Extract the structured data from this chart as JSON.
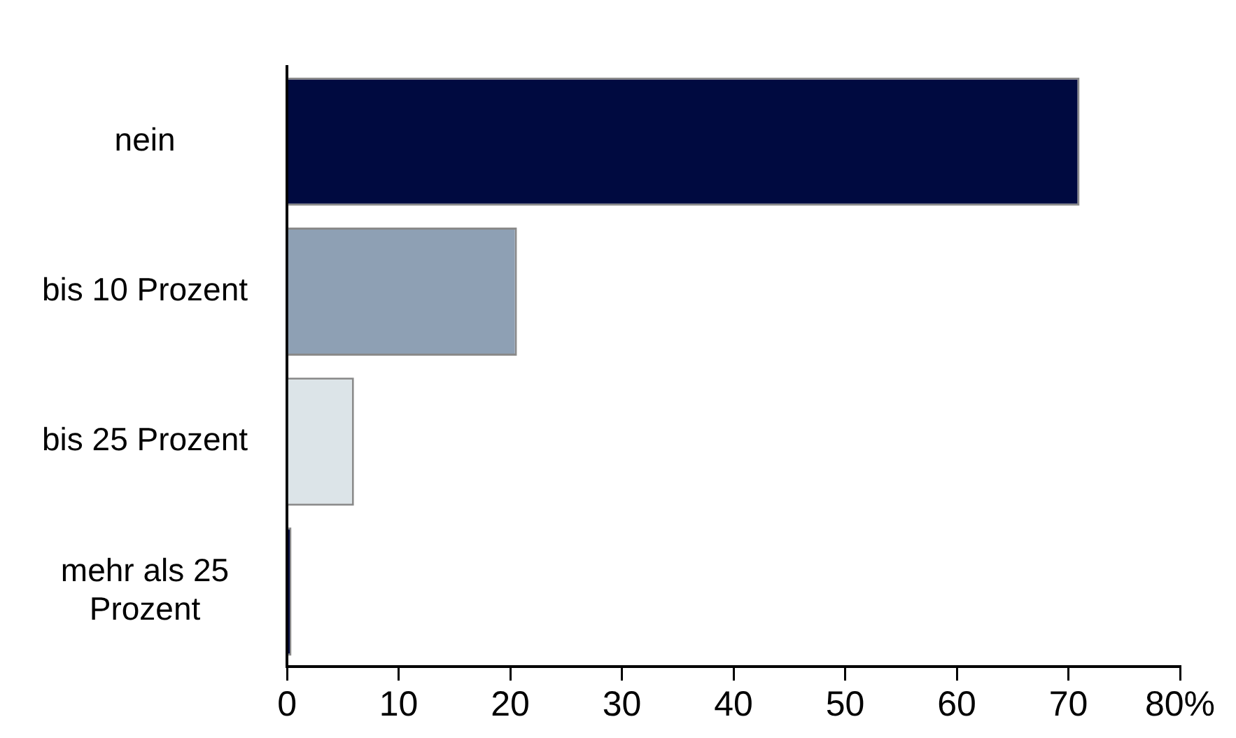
{
  "chart_data": {
    "type": "bar",
    "orientation": "horizontal",
    "categories": [
      "nein",
      "bis 10 Prozent",
      "bis 25 Prozent",
      "mehr als 25 Prozent"
    ],
    "values": [
      71,
      20.6,
      6,
      0.4
    ],
    "colors": [
      "#000a40",
      "#8ea0b4",
      "#dce4e8",
      "#000a40"
    ],
    "xlim": [
      0,
      80
    ],
    "xticks": [
      0,
      10,
      20,
      30,
      40,
      50,
      60,
      70,
      {
        "value": 80,
        "label": "80%"
      }
    ],
    "grid": false,
    "legend": false
  }
}
